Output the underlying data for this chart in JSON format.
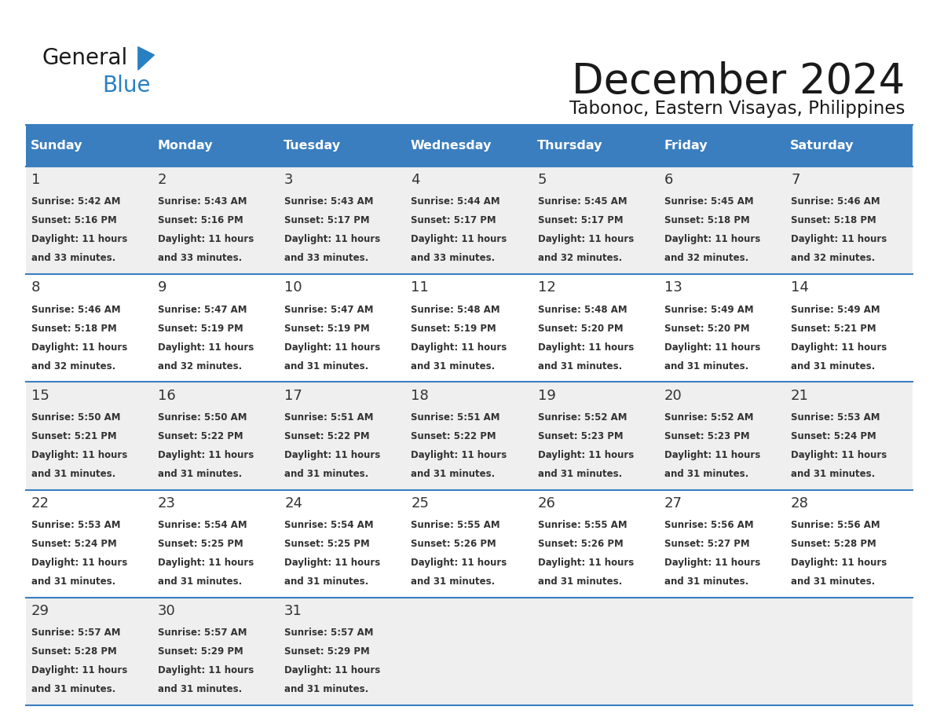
{
  "title": "December 2024",
  "subtitle": "Tabonoc, Eastern Visayas, Philippines",
  "header_color": "#3a7ebf",
  "header_text_color": "#ffffff",
  "text_color": "#333333",
  "border_color": "#3a7ebf",
  "days_of_week": [
    "Sunday",
    "Monday",
    "Tuesday",
    "Wednesday",
    "Thursday",
    "Friday",
    "Saturday"
  ],
  "weeks": [
    [
      {
        "day": 1,
        "sunrise": "5:42 AM",
        "sunset": "5:16 PM",
        "daylight_hours": 11,
        "daylight_minutes": 33
      },
      {
        "day": 2,
        "sunrise": "5:43 AM",
        "sunset": "5:16 PM",
        "daylight_hours": 11,
        "daylight_minutes": 33
      },
      {
        "day": 3,
        "sunrise": "5:43 AM",
        "sunset": "5:17 PM",
        "daylight_hours": 11,
        "daylight_minutes": 33
      },
      {
        "day": 4,
        "sunrise": "5:44 AM",
        "sunset": "5:17 PM",
        "daylight_hours": 11,
        "daylight_minutes": 33
      },
      {
        "day": 5,
        "sunrise": "5:45 AM",
        "sunset": "5:17 PM",
        "daylight_hours": 11,
        "daylight_minutes": 32
      },
      {
        "day": 6,
        "sunrise": "5:45 AM",
        "sunset": "5:18 PM",
        "daylight_hours": 11,
        "daylight_minutes": 32
      },
      {
        "day": 7,
        "sunrise": "5:46 AM",
        "sunset": "5:18 PM",
        "daylight_hours": 11,
        "daylight_minutes": 32
      }
    ],
    [
      {
        "day": 8,
        "sunrise": "5:46 AM",
        "sunset": "5:18 PM",
        "daylight_hours": 11,
        "daylight_minutes": 32
      },
      {
        "day": 9,
        "sunrise": "5:47 AM",
        "sunset": "5:19 PM",
        "daylight_hours": 11,
        "daylight_minutes": 32
      },
      {
        "day": 10,
        "sunrise": "5:47 AM",
        "sunset": "5:19 PM",
        "daylight_hours": 11,
        "daylight_minutes": 31
      },
      {
        "day": 11,
        "sunrise": "5:48 AM",
        "sunset": "5:19 PM",
        "daylight_hours": 11,
        "daylight_minutes": 31
      },
      {
        "day": 12,
        "sunrise": "5:48 AM",
        "sunset": "5:20 PM",
        "daylight_hours": 11,
        "daylight_minutes": 31
      },
      {
        "day": 13,
        "sunrise": "5:49 AM",
        "sunset": "5:20 PM",
        "daylight_hours": 11,
        "daylight_minutes": 31
      },
      {
        "day": 14,
        "sunrise": "5:49 AM",
        "sunset": "5:21 PM",
        "daylight_hours": 11,
        "daylight_minutes": 31
      }
    ],
    [
      {
        "day": 15,
        "sunrise": "5:50 AM",
        "sunset": "5:21 PM",
        "daylight_hours": 11,
        "daylight_minutes": 31
      },
      {
        "day": 16,
        "sunrise": "5:50 AM",
        "sunset": "5:22 PM",
        "daylight_hours": 11,
        "daylight_minutes": 31
      },
      {
        "day": 17,
        "sunrise": "5:51 AM",
        "sunset": "5:22 PM",
        "daylight_hours": 11,
        "daylight_minutes": 31
      },
      {
        "day": 18,
        "sunrise": "5:51 AM",
        "sunset": "5:22 PM",
        "daylight_hours": 11,
        "daylight_minutes": 31
      },
      {
        "day": 19,
        "sunrise": "5:52 AM",
        "sunset": "5:23 PM",
        "daylight_hours": 11,
        "daylight_minutes": 31
      },
      {
        "day": 20,
        "sunrise": "5:52 AM",
        "sunset": "5:23 PM",
        "daylight_hours": 11,
        "daylight_minutes": 31
      },
      {
        "day": 21,
        "sunrise": "5:53 AM",
        "sunset": "5:24 PM",
        "daylight_hours": 11,
        "daylight_minutes": 31
      }
    ],
    [
      {
        "day": 22,
        "sunrise": "5:53 AM",
        "sunset": "5:24 PM",
        "daylight_hours": 11,
        "daylight_minutes": 31
      },
      {
        "day": 23,
        "sunrise": "5:54 AM",
        "sunset": "5:25 PM",
        "daylight_hours": 11,
        "daylight_minutes": 31
      },
      {
        "day": 24,
        "sunrise": "5:54 AM",
        "sunset": "5:25 PM",
        "daylight_hours": 11,
        "daylight_minutes": 31
      },
      {
        "day": 25,
        "sunrise": "5:55 AM",
        "sunset": "5:26 PM",
        "daylight_hours": 11,
        "daylight_minutes": 31
      },
      {
        "day": 26,
        "sunrise": "5:55 AM",
        "sunset": "5:26 PM",
        "daylight_hours": 11,
        "daylight_minutes": 31
      },
      {
        "day": 27,
        "sunrise": "5:56 AM",
        "sunset": "5:27 PM",
        "daylight_hours": 11,
        "daylight_minutes": 31
      },
      {
        "day": 28,
        "sunrise": "5:56 AM",
        "sunset": "5:28 PM",
        "daylight_hours": 11,
        "daylight_minutes": 31
      }
    ],
    [
      {
        "day": 29,
        "sunrise": "5:57 AM",
        "sunset": "5:28 PM",
        "daylight_hours": 11,
        "daylight_minutes": 31
      },
      {
        "day": 30,
        "sunrise": "5:57 AM",
        "sunset": "5:29 PM",
        "daylight_hours": 11,
        "daylight_minutes": 31
      },
      {
        "day": 31,
        "sunrise": "5:57 AM",
        "sunset": "5:29 PM",
        "daylight_hours": 11,
        "daylight_minutes": 31
      },
      null,
      null,
      null,
      null
    ]
  ],
  "fig_width": 11.88,
  "fig_height": 9.18,
  "dpi": 100
}
